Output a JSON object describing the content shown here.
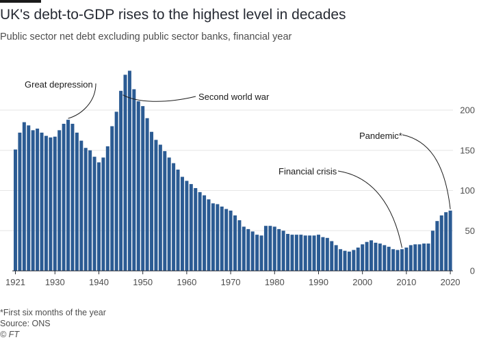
{
  "title": "UK's debt-to-GDP rises to the highest level in decades",
  "subtitle": "Public sector net debt excluding public sector banks, financial year",
  "footnote": "*First six months of the year",
  "source": "Source: ONS",
  "copyright": "© FT",
  "colors": {
    "bar": "#2b5b93",
    "grid": "#e6e6e6",
    "axis": "#262a33",
    "annotation": "#1a1a1a"
  },
  "chart_data": {
    "type": "bar",
    "title": "UK's debt-to-GDP rises to the highest level in decades",
    "subtitle": "Public sector net debt excluding public sector banks, financial year",
    "xlabel": "",
    "ylabel": "",
    "x_ticks": [
      1921,
      1930,
      1940,
      1950,
      1960,
      1970,
      1980,
      1990,
      2000,
      2010,
      2020
    ],
    "y_ticks": [
      0,
      50,
      100,
      150,
      200
    ],
    "y_axis_position": "right",
    "ylim": [
      0,
      250
    ],
    "grid": true,
    "categories": [
      1921,
      1922,
      1923,
      1924,
      1925,
      1926,
      1927,
      1928,
      1929,
      1930,
      1931,
      1932,
      1933,
      1934,
      1935,
      1936,
      1937,
      1938,
      1939,
      1940,
      1941,
      1942,
      1943,
      1944,
      1945,
      1946,
      1947,
      1948,
      1949,
      1950,
      1951,
      1952,
      1953,
      1954,
      1955,
      1956,
      1957,
      1958,
      1959,
      1960,
      1961,
      1962,
      1963,
      1964,
      1965,
      1966,
      1967,
      1968,
      1969,
      1970,
      1971,
      1972,
      1973,
      1974,
      1975,
      1976,
      1977,
      1978,
      1979,
      1980,
      1981,
      1982,
      1983,
      1984,
      1985,
      1986,
      1987,
      1988,
      1989,
      1990,
      1991,
      1992,
      1993,
      1994,
      1995,
      1996,
      1997,
      1998,
      1999,
      2000,
      2001,
      2002,
      2003,
      2004,
      2005,
      2006,
      2007,
      2008,
      2009,
      2010,
      2011,
      2012,
      2013,
      2014,
      2015,
      2016,
      2017,
      2018,
      2019,
      2020
    ],
    "values": [
      151,
      172,
      185,
      181,
      175,
      177,
      172,
      168,
      166,
      167,
      175,
      183,
      188,
      183,
      172,
      162,
      153,
      150,
      142,
      135,
      141,
      155,
      180,
      198,
      224,
      244,
      249,
      226,
      211,
      205,
      190,
      173,
      163,
      157,
      149,
      141,
      134,
      126,
      117,
      112,
      108,
      103,
      98,
      94,
      89,
      84,
      83,
      80,
      77,
      75,
      69,
      63,
      55,
      52,
      49,
      45,
      44,
      56,
      56,
      55,
      52,
      50,
      46,
      45,
      45,
      45,
      44,
      44,
      44,
      45,
      42,
      41,
      37,
      32,
      27,
      25,
      24,
      26,
      29,
      33,
      36,
      38,
      35,
      34,
      32,
      30,
      27,
      26,
      27,
      29,
      32,
      33,
      33,
      34,
      34,
      50,
      62,
      69,
      73,
      75
    ],
    "annotations": [
      {
        "label": "Great depression",
        "year": 1933
      },
      {
        "label": "Second world war",
        "year": 1945
      },
      {
        "label": "Financial crisis",
        "year": 2009
      },
      {
        "label": "Pandemic*",
        "year": 2020
      }
    ]
  }
}
